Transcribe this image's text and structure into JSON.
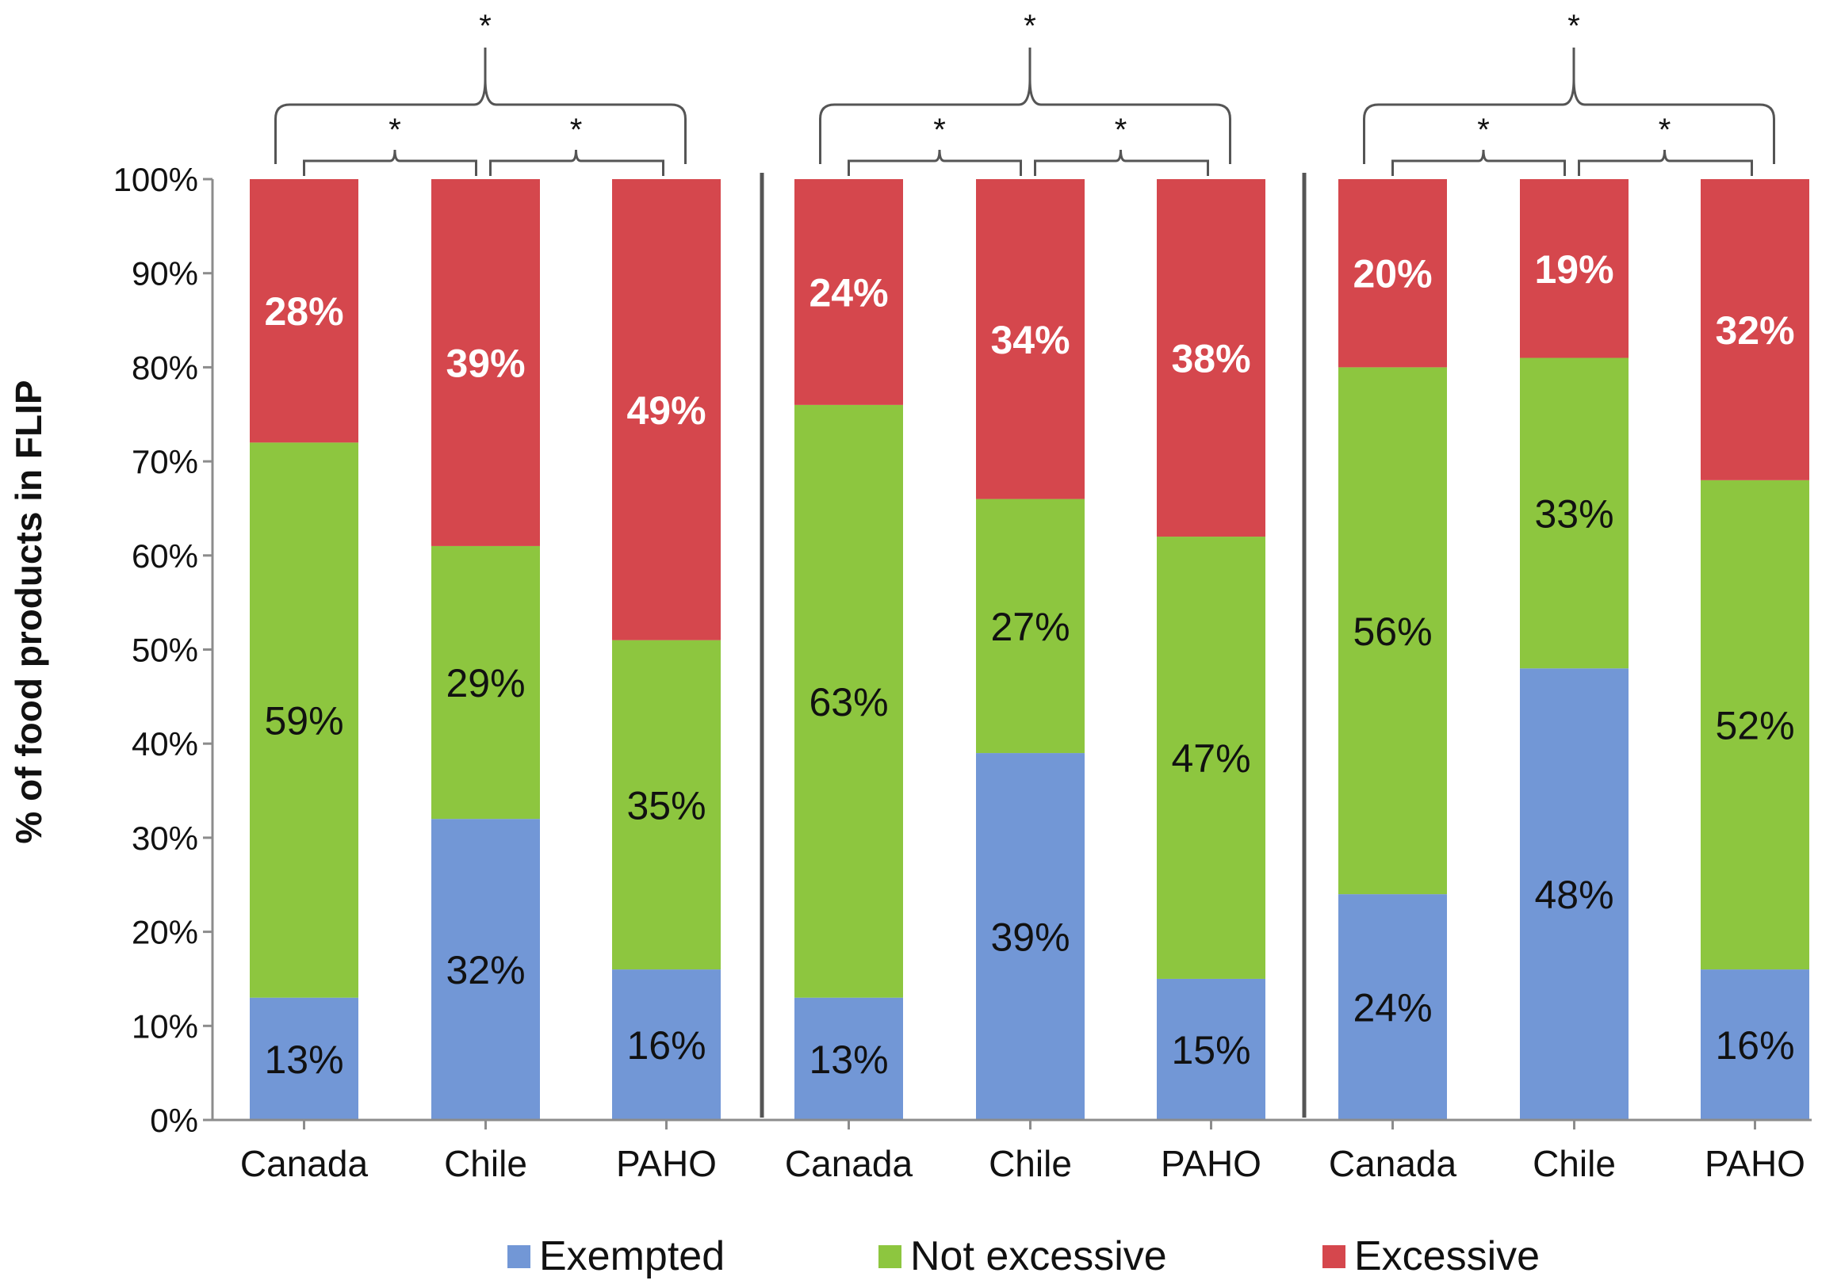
{
  "chart_data": {
    "type": "bar",
    "stacked": true,
    "ylabel": "% of food products in FLIP",
    "ylim": [
      0,
      100
    ],
    "yticks": [
      "0%",
      "10%",
      "20%",
      "30%",
      "40%",
      "50%",
      "60%",
      "70%",
      "80%",
      "90%",
      "100%"
    ],
    "categories": [
      "Canada",
      "Chile",
      "PAHO",
      "Canada",
      "Chile",
      "PAHO",
      "Canada",
      "Chile",
      "PAHO"
    ],
    "groups": [
      3,
      3,
      3
    ],
    "series": [
      {
        "name": "Exempted",
        "color": "#7297d6",
        "values": [
          13,
          32,
          16,
          13,
          39,
          15,
          24,
          48,
          16
        ],
        "labels": [
          "13%",
          "32%",
          "16%",
          "13%",
          "39%",
          "15%",
          "24%",
          "48%",
          "16%"
        ]
      },
      {
        "name": "Not excessive",
        "color": "#8dc63f",
        "values": [
          59,
          29,
          35,
          63,
          27,
          47,
          56,
          33,
          52
        ],
        "labels": [
          "59%",
          "29%",
          "35%",
          "63%",
          "27%",
          "47%",
          "56%",
          "33%",
          "52%"
        ]
      },
      {
        "name": "Excessive",
        "color": "#d5474d",
        "values": [
          28,
          39,
          49,
          24,
          34,
          38,
          20,
          19,
          32
        ],
        "labels": [
          "28%",
          "39%",
          "49%",
          "24%",
          "34%",
          "38%",
          "20%",
          "19%",
          "32%"
        ]
      }
    ],
    "significance_marker": "*",
    "legend_position": "bottom",
    "grid": false
  }
}
